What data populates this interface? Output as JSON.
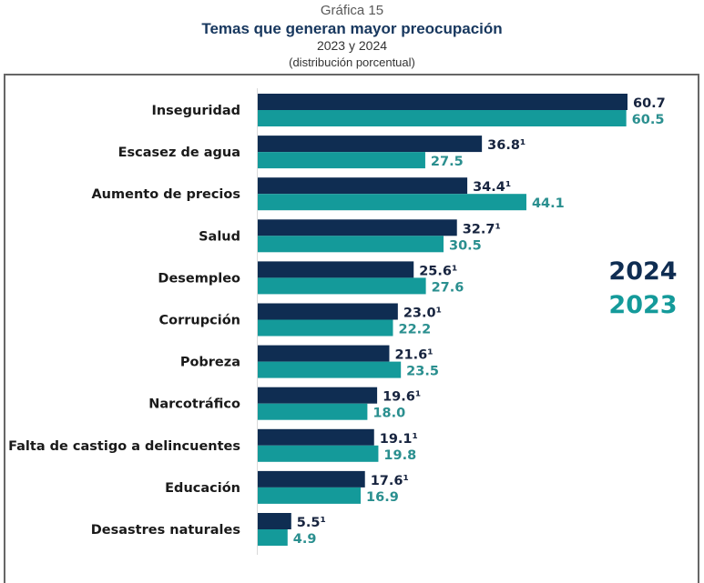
{
  "header": {
    "kicker": "Gráfica 15",
    "title": "Temas que generan mayor preocupación",
    "subtitle": "2023 y 2024",
    "note": "(distribución porcentual)"
  },
  "chart_data": {
    "type": "bar",
    "orientation": "horizontal",
    "title": "Temas que generan mayor preocupación",
    "subtitle": "2023 y 2024 (distribución porcentual)",
    "xlabel": "",
    "ylabel": "",
    "grid": false,
    "legend_position": "right",
    "categories": [
      "Inseguridad",
      "Escasez de agua",
      "Aumento de precios",
      "Salud",
      "Desempleo",
      "Corrupción",
      "Pobreza",
      "Narcotráfico",
      "Falta de castigo a delincuentes",
      "Educación",
      "Desastres naturales"
    ],
    "series": [
      {
        "name": "2024",
        "color": "#0f2d52",
        "values": [
          60.7,
          36.8,
          34.4,
          32.7,
          25.6,
          23.0,
          21.6,
          19.6,
          19.1,
          17.6,
          5.5
        ],
        "labels": [
          "60.7",
          "36.8¹",
          "34.4¹",
          "32.7¹",
          "25.6¹",
          "23.0¹",
          "21.6¹",
          "19.6¹",
          "19.1¹",
          "17.6¹",
          "5.5¹"
        ]
      },
      {
        "name": "2023",
        "color": "#149a9a",
        "values": [
          60.5,
          27.5,
          44.1,
          30.5,
          27.6,
          22.2,
          23.5,
          18.0,
          19.8,
          16.9,
          4.9
        ],
        "labels": [
          "60.5",
          "27.5",
          "44.1",
          "30.5",
          "27.6",
          "22.2",
          "23.5",
          "18.0",
          "19.8",
          "16.9",
          "4.9"
        ]
      }
    ],
    "xlim": [
      0,
      60.7
    ]
  },
  "colors": {
    "series_2024": "#0f2d52",
    "series_2023": "#149a9a",
    "label_2024": "#17243f",
    "label_2023": "#2a8f8f",
    "axis": "#d9d9d9"
  }
}
